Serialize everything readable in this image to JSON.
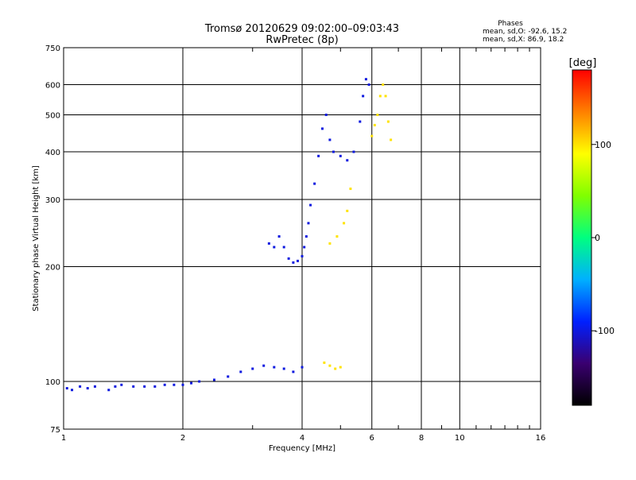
{
  "chart_data": {
    "type": "scatter",
    "title": "Tromsø 20120629 09:02:00–09:03:43",
    "subtitle": "RwPretec (8p)",
    "xlabel": "Frequency [MHz]",
    "ylabel": "Stationary phase Virtual Height [km]",
    "x_scale": "log",
    "y_scale": "log",
    "xlim": [
      1,
      16
    ],
    "ylim": [
      75,
      750
    ],
    "x_ticks": [
      1,
      2,
      4,
      6,
      8,
      10,
      16
    ],
    "y_ticks": [
      75,
      100,
      200,
      300,
      400,
      500,
      600,
      750
    ],
    "grid": true,
    "stats": {
      "heading": "Phases",
      "line_o": "mean, sd,O: -92.6, 15.2",
      "line_x": "mean, sd,X:  86.9, 18.2"
    },
    "colorbar": {
      "label": "[deg]",
      "range": [
        -180,
        180
      ],
      "ticks": [
        -100,
        0,
        100
      ],
      "colors": [
        "#000000",
        "#3a0070",
        "#0020ff",
        "#00b0ff",
        "#00ff80",
        "#80ff00",
        "#ffff00",
        "#ff8000",
        "#ff0000"
      ]
    },
    "series": [
      {
        "points": [
          [
            1.02,
            96,
            -100
          ],
          [
            1.05,
            95,
            -100
          ],
          [
            1.1,
            97,
            -100
          ],
          [
            1.15,
            96,
            -100
          ],
          [
            1.2,
            97,
            -100
          ],
          [
            1.3,
            95,
            -100
          ],
          [
            1.35,
            97,
            -100
          ],
          [
            1.4,
            98,
            -100
          ],
          [
            1.5,
            97,
            -100
          ],
          [
            1.6,
            97,
            -100
          ],
          [
            1.7,
            97,
            -100
          ],
          [
            1.8,
            98,
            -100
          ],
          [
            1.9,
            98,
            -100
          ],
          [
            2.0,
            98,
            -100
          ],
          [
            2.1,
            99,
            -100
          ],
          [
            2.2,
            100,
            -100
          ],
          [
            2.4,
            101,
            -100
          ],
          [
            2.6,
            103,
            -100
          ],
          [
            2.8,
            106,
            -100
          ],
          [
            3.0,
            108,
            -100
          ],
          [
            3.2,
            110,
            -100
          ],
          [
            3.4,
            109,
            -100
          ],
          [
            3.6,
            108,
            -100
          ],
          [
            3.8,
            106,
            -100
          ],
          [
            4.0,
            109,
            -100
          ]
        ]
      },
      {
        "points": [
          [
            3.3,
            230,
            -100
          ],
          [
            3.4,
            225,
            -100
          ],
          [
            3.5,
            240,
            -100
          ],
          [
            3.6,
            225,
            -100
          ],
          [
            3.7,
            210,
            -100
          ],
          [
            3.8,
            205,
            -100
          ],
          [
            3.9,
            207,
            -100
          ],
          [
            4.0,
            213,
            -100
          ],
          [
            4.05,
            225,
            -100
          ],
          [
            4.1,
            240,
            -100
          ],
          [
            4.15,
            260,
            -100
          ],
          [
            4.2,
            290,
            -100
          ],
          [
            4.3,
            330,
            -100
          ],
          [
            4.4,
            390,
            -100
          ],
          [
            4.5,
            460,
            -100
          ],
          [
            4.6,
            500,
            -100
          ],
          [
            4.7,
            430,
            -100
          ],
          [
            4.8,
            400,
            -100
          ],
          [
            5.0,
            390,
            -100
          ],
          [
            5.2,
            380,
            -100
          ],
          [
            5.4,
            400,
            -100
          ],
          [
            5.6,
            480,
            -100
          ],
          [
            5.7,
            560,
            -100
          ],
          [
            5.8,
            620,
            -100
          ],
          [
            5.9,
            600,
            -100
          ]
        ]
      },
      {
        "points": [
          [
            4.55,
            112,
            100
          ],
          [
            4.7,
            110,
            100
          ],
          [
            4.85,
            108,
            100
          ],
          [
            5.0,
            109,
            100
          ],
          [
            4.7,
            230,
            100
          ],
          [
            4.9,
            240,
            100
          ],
          [
            5.1,
            260,
            100
          ],
          [
            5.2,
            280,
            100
          ],
          [
            5.3,
            320,
            100
          ],
          [
            6.0,
            440,
            100
          ],
          [
            6.1,
            470,
            100
          ],
          [
            6.2,
            500,
            100
          ],
          [
            6.3,
            560,
            100
          ],
          [
            6.4,
            600,
            100
          ],
          [
            6.5,
            560,
            100
          ],
          [
            6.6,
            480,
            100
          ],
          [
            6.7,
            430,
            100
          ]
        ]
      }
    ]
  }
}
